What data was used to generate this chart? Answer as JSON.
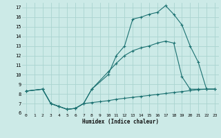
{
  "xlabel": "Humidex (Indice chaleur)",
  "bg_color": "#cceae7",
  "grid_color": "#aad4d0",
  "line_color": "#1a7070",
  "line1_x": [
    0,
    2,
    3,
    4,
    5,
    6,
    7,
    8,
    10,
    11,
    12,
    13,
    14,
    15,
    16,
    17,
    18,
    19,
    20,
    21,
    22,
    23
  ],
  "line1_y": [
    8.3,
    8.5,
    7.0,
    6.7,
    6.4,
    6.5,
    7.0,
    8.5,
    10.0,
    12.0,
    13.0,
    15.8,
    16.0,
    16.3,
    16.5,
    17.2,
    16.3,
    15.2,
    13.0,
    11.3,
    8.5,
    8.5
  ],
  "line2_x": [
    0,
    2,
    3,
    4,
    5,
    6,
    7,
    8,
    9,
    10,
    11,
    12,
    13,
    14,
    15,
    16,
    17,
    18,
    19,
    20,
    21,
    22,
    23
  ],
  "line2_y": [
    8.3,
    8.5,
    7.0,
    6.7,
    6.4,
    6.5,
    7.0,
    7.1,
    7.2,
    7.3,
    7.45,
    7.55,
    7.65,
    7.75,
    7.85,
    7.95,
    8.05,
    8.15,
    8.25,
    8.35,
    8.45,
    8.5,
    8.5
  ],
  "line3_x": [
    0,
    2,
    3,
    4,
    5,
    6,
    7,
    8,
    10,
    11,
    12,
    13,
    14,
    15,
    16,
    17,
    18,
    19,
    20,
    21,
    22,
    23
  ],
  "line3_y": [
    8.3,
    8.5,
    7.0,
    6.7,
    6.4,
    6.5,
    7.0,
    8.5,
    10.3,
    11.2,
    12.0,
    12.5,
    12.8,
    13.0,
    13.3,
    13.5,
    13.3,
    9.8,
    8.5,
    8.5,
    8.5,
    8.5
  ],
  "xlim": [
    -0.5,
    23.5
  ],
  "ylim": [
    6,
    17.5
  ],
  "xticks": [
    0,
    1,
    2,
    3,
    4,
    5,
    6,
    7,
    8,
    9,
    10,
    11,
    12,
    13,
    14,
    15,
    16,
    17,
    18,
    19,
    20,
    21,
    22,
    23
  ],
  "yticks": [
    6,
    7,
    8,
    9,
    10,
    11,
    12,
    13,
    14,
    15,
    16,
    17
  ]
}
